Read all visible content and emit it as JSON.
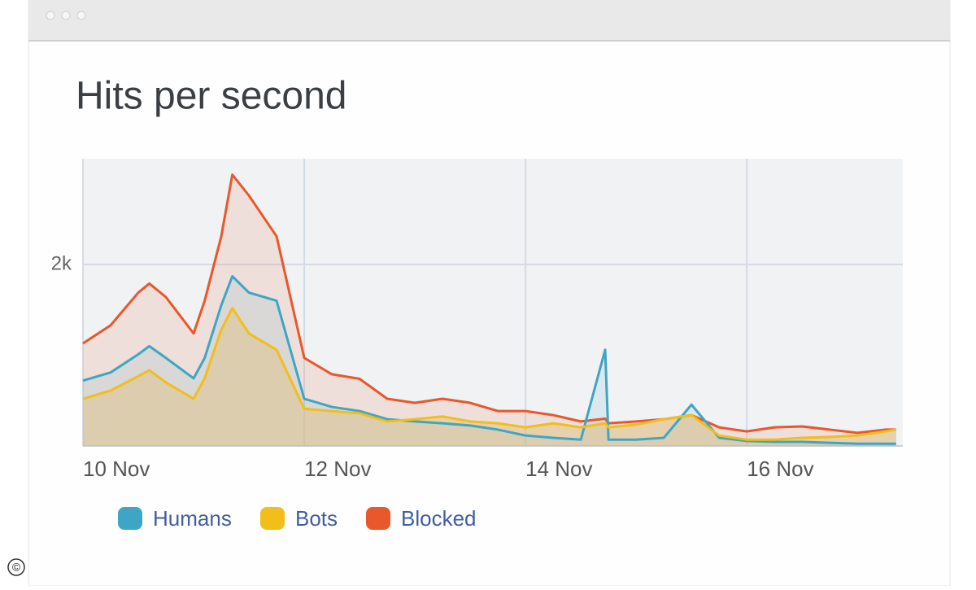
{
  "chart_data": {
    "type": "area",
    "title": "Hits per second",
    "x": [
      10,
      10.25,
      10.5,
      10.6,
      10.75,
      11,
      11.1,
      11.25,
      11.35,
      11.5,
      11.75,
      12,
      12.25,
      12.5,
      12.75,
      13,
      13.25,
      13.5,
      13.75,
      14,
      14.25,
      14.5,
      14.72,
      14.75,
      15,
      15.25,
      15.5,
      15.75,
      16,
      16.25,
      16.5,
      16.75,
      17,
      17.25,
      17.35
    ],
    "series": [
      {
        "name": "Humans",
        "color": "#3ea6c4",
        "values": [
          720,
          810,
          1010,
          1100,
          970,
          745,
          970,
          1550,
          1870,
          1690,
          1600,
          520,
          430,
          385,
          295,
          270,
          250,
          225,
          180,
          115,
          90,
          70,
          1060,
          70,
          70,
          90,
          455,
          90,
          55,
          45,
          45,
          35,
          25,
          25,
          25
        ]
      },
      {
        "name": "Bots",
        "color": "#f2be1a",
        "values": [
          520,
          610,
          770,
          835,
          700,
          520,
          745,
          1280,
          1520,
          1240,
          1060,
          410,
          385,
          360,
          270,
          295,
          325,
          270,
          250,
          205,
          250,
          205,
          250,
          205,
          235,
          295,
          340,
          115,
          70,
          70,
          90,
          100,
          115,
          160,
          180
        ]
      },
      {
        "name": "Blocked",
        "color": "#e8582a",
        "values": [
          1130,
          1330,
          1690,
          1790,
          1640,
          1240,
          1600,
          2310,
          2990,
          2760,
          2310,
          970,
          790,
          740,
          520,
          475,
          520,
          475,
          385,
          385,
          340,
          270,
          300,
          250,
          270,
          295,
          340,
          205,
          160,
          205,
          215,
          180,
          145,
          180,
          180
        ]
      }
    ],
    "xlim": [
      10,
      17.41
    ],
    "xticks": [
      {
        "value": 10,
        "label": "10 Nov"
      },
      {
        "value": 12,
        "label": "12 Nov"
      },
      {
        "value": 14,
        "label": "14 Nov"
      },
      {
        "value": 16,
        "label": "16 Nov"
      }
    ],
    "ylim": [
      0,
      3166
    ],
    "yticks": [
      {
        "value": 2000,
        "label": "2k"
      }
    ],
    "grid": true
  },
  "copyright": "©"
}
